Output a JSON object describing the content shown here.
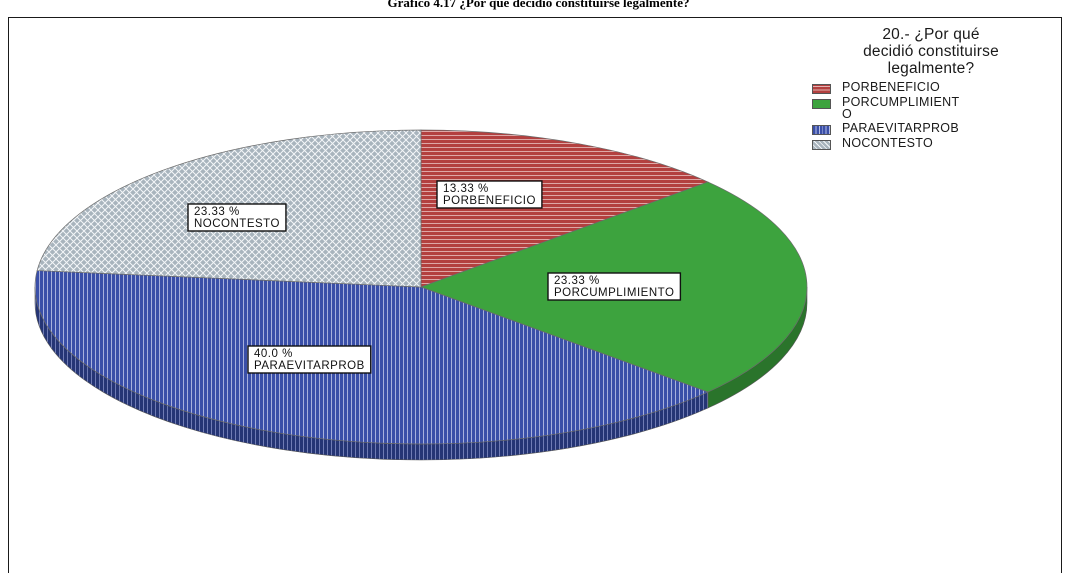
{
  "figure_caption": "Gráfico 4.17 ¿Por qué decidió constituirse legalmente?",
  "chart_data": {
    "type": "pie",
    "title": "",
    "legend_title": "20.- ¿Por qué decidió constituirse legalmente?",
    "legend_placement": "top-right",
    "three_d": true,
    "slices": [
      {
        "name": "PORBENEFICIO",
        "legend_label": "PORBENEFICIO",
        "value": 13.33,
        "label_value": "13.33 %",
        "color": "#b3403f",
        "pattern": "horizontal-lines"
      },
      {
        "name": "PORCUMPLIMIENTO",
        "legend_label": "PORCUMPLIMIENTO",
        "value": 23.33,
        "label_value": "23.33 %",
        "color": "#3da33e",
        "pattern": "none"
      },
      {
        "name": "PARAEVITARPROB",
        "legend_label": "PARAEVITARPROB",
        "value": 40.0,
        "label_value": "40.0 %",
        "color": "#3a4fa8",
        "pattern": "vertical-lines"
      },
      {
        "name": "NOCONTESTO",
        "legend_label": "NOCONTESTO",
        "value": 23.33,
        "label_value": "23.33 %",
        "color": "#a8b4bd",
        "pattern": "crosshatch"
      }
    ]
  }
}
